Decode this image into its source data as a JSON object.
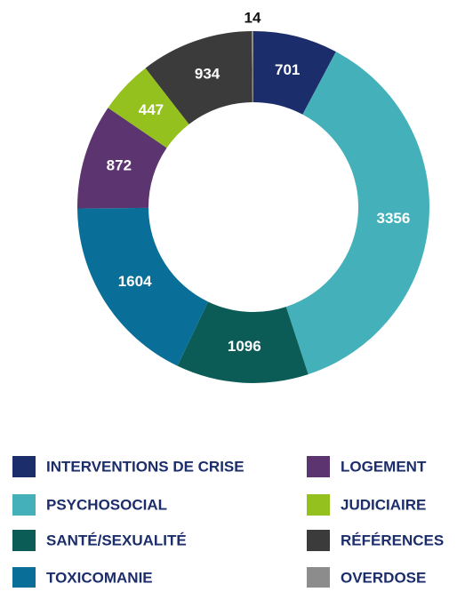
{
  "chart_data": {
    "type": "donut",
    "categories": [
      "INTERVENTIONS DE CRISE",
      "PSYCHOSOCIAL",
      "SANTÉ/SEXUALITÉ",
      "TOXICOMANIE",
      "LOGEMENT",
      "JUDICIAIRE",
      "RÉFÉRENCES",
      "OVERDOSE"
    ],
    "values": [
      701,
      3356,
      1096,
      1604,
      872,
      447,
      934,
      14
    ],
    "colors": [
      "#1b2d6b",
      "#44b0b9",
      "#0b5c57",
      "#0a6f98",
      "#5b3470",
      "#95c11f",
      "#3b3b3b",
      "#8c8c8c"
    ]
  }
}
